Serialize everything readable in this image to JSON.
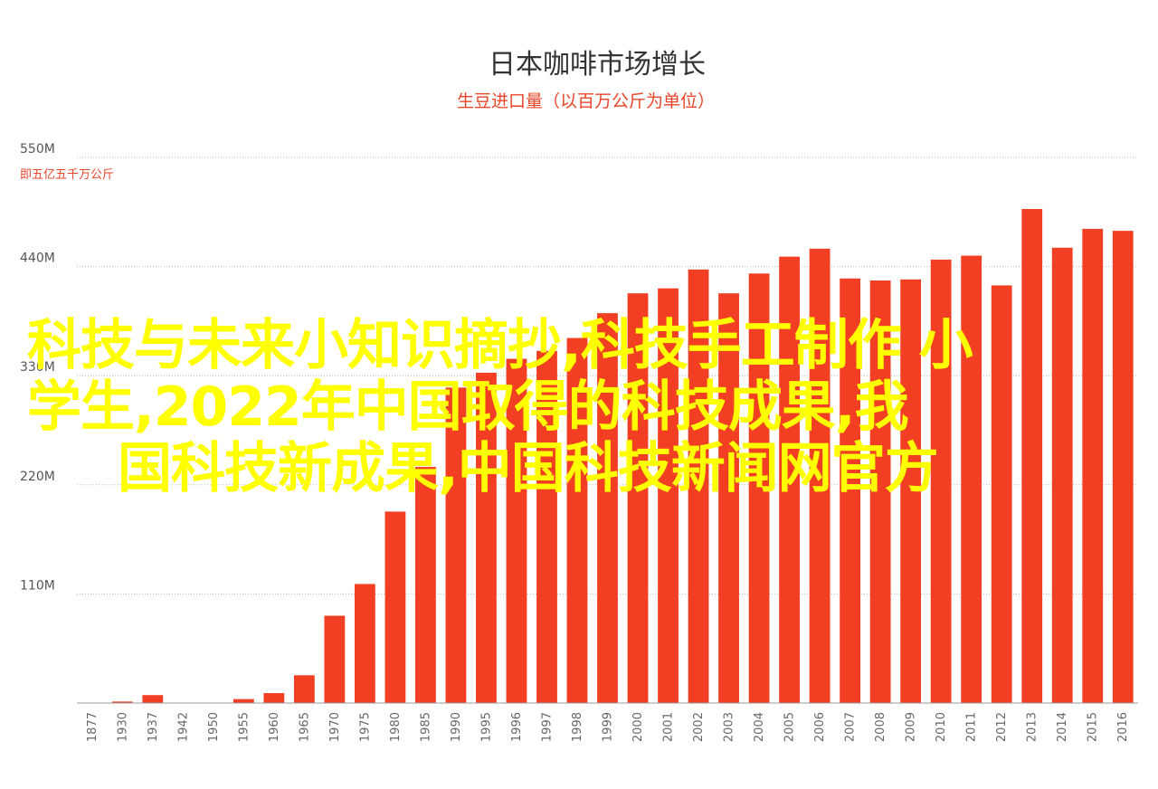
{
  "chart_data": {
    "type": "bar",
    "title": "日本咖啡市场增长",
    "subtitle": "生豆进口量（以百万公斤为单位）",
    "y_note": "即五亿五千万公斤",
    "ylim": [
      0,
      550
    ],
    "yticks": [
      {
        "value": 110,
        "label": "110M"
      },
      {
        "value": 220,
        "label": "220M"
      },
      {
        "value": 330,
        "label": "330M"
      },
      {
        "value": 440,
        "label": "440M"
      },
      {
        "value": 550,
        "label": "550M"
      }
    ],
    "categories": [
      "1877",
      "1930",
      "1937",
      "1942",
      "1950",
      "1955",
      "1960",
      "1965",
      "1970",
      "1975",
      "1980",
      "1985",
      "1990",
      "1995",
      "1996",
      "1997",
      "1998",
      "1999",
      "2000",
      "2001",
      "2002",
      "2003",
      "2004",
      "2005",
      "2006",
      "2007",
      "2008",
      "2009",
      "2010",
      "2011",
      "2012",
      "2013",
      "2014",
      "2015",
      "2016"
    ],
    "values": [
      0,
      1.5,
      8,
      0,
      0,
      4,
      10,
      28,
      88,
      120,
      193,
      238,
      318,
      333,
      347,
      355,
      368,
      393,
      413,
      418,
      437,
      413,
      433,
      450,
      458,
      428,
      426,
      427,
      447,
      451,
      421,
      498,
      459,
      478,
      476
    ],
    "bar_color": "#f23e22",
    "grid": true
  },
  "overlay_text": {
    "line1": "科技与未来小知识摘抄,科技手工制作 小",
    "line2": "学生,2022年中国取得的科技成果,我",
    "line3": "国科技新成果,中国科技新闻网官方"
  }
}
